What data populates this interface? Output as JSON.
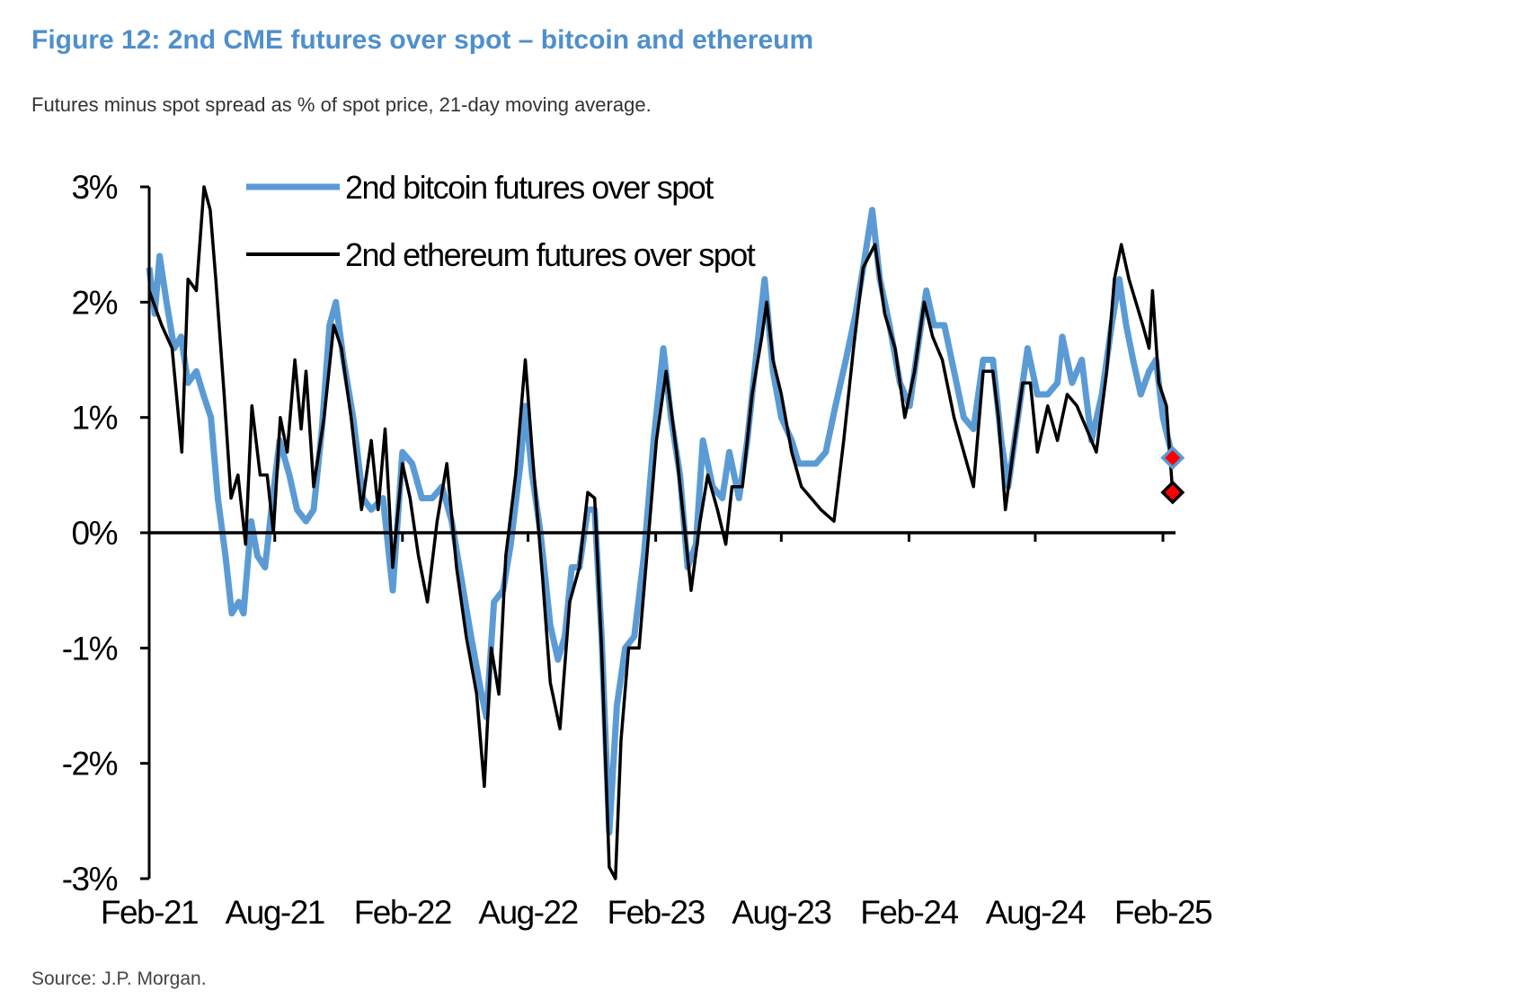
{
  "header": {
    "title": "Figure 12: 2nd CME futures over spot – bitcoin and ethereum",
    "subtitle": "Futures minus spot spread as % of spot price, 21-day moving average."
  },
  "footer": {
    "source": "Source: J.P. Morgan."
  },
  "chart_data": {
    "type": "line",
    "title": "",
    "xlabel": "",
    "ylabel": "",
    "ylim": [
      -3,
      3
    ],
    "yticks": [
      3,
      2,
      1,
      0,
      -1,
      -2,
      -3
    ],
    "ytick_labels": [
      "3%",
      "2%",
      "1%",
      "0%",
      "-1%",
      "-2%",
      "-3%"
    ],
    "xlim": [
      "2021-02-01",
      "2025-02-15"
    ],
    "xticks": [
      "2021-02-01",
      "2021-08-01",
      "2022-02-01",
      "2022-08-01",
      "2023-02-01",
      "2023-08-01",
      "2024-02-01",
      "2024-08-01",
      "2025-02-01"
    ],
    "xtick_labels": [
      "Feb-21",
      "Aug-21",
      "Feb-22",
      "Aug-22",
      "Feb-23",
      "Aug-23",
      "Feb-24",
      "Aug-24",
      "Feb-25"
    ],
    "grid": false,
    "legend_position": "top-left",
    "series": [
      {
        "name": "2nd bitcoin futures over spot",
        "color": "#5b9bd5",
        "last_marker": {
          "shape": "diamond",
          "fill": "#ff0000",
          "value": 0.65
        },
        "points": [
          [
            "2021-02-01",
            2.3
          ],
          [
            "2021-02-09",
            1.9
          ],
          [
            "2021-02-16",
            2.4
          ],
          [
            "2021-02-26",
            2.0
          ],
          [
            "2021-03-09",
            1.6
          ],
          [
            "2021-03-19",
            1.7
          ],
          [
            "2021-03-29",
            1.3
          ],
          [
            "2021-04-10",
            1.4
          ],
          [
            "2021-04-20",
            1.2
          ],
          [
            "2021-05-01",
            1.0
          ],
          [
            "2021-05-11",
            0.3
          ],
          [
            "2021-05-22",
            -0.2
          ],
          [
            "2021-05-31",
            -0.7
          ],
          [
            "2021-06-10",
            -0.6
          ],
          [
            "2021-06-17",
            -0.7
          ],
          [
            "2021-06-28",
            0.1
          ],
          [
            "2021-07-07",
            -0.2
          ],
          [
            "2021-07-18",
            -0.3
          ],
          [
            "2021-07-29",
            0.3
          ],
          [
            "2021-08-08",
            0.8
          ],
          [
            "2021-08-22",
            0.5
          ],
          [
            "2021-09-02",
            0.2
          ],
          [
            "2021-09-15",
            0.1
          ],
          [
            "2021-09-26",
            0.2
          ],
          [
            "2021-10-08",
            0.9
          ],
          [
            "2021-10-19",
            1.8
          ],
          [
            "2021-10-28",
            2.0
          ],
          [
            "2021-11-08",
            1.5
          ],
          [
            "2021-11-22",
            1.0
          ],
          [
            "2021-12-06",
            0.3
          ],
          [
            "2021-12-18",
            0.2
          ],
          [
            "2022-01-04",
            0.3
          ],
          [
            "2022-01-18",
            -0.5
          ],
          [
            "2022-02-01",
            0.7
          ],
          [
            "2022-02-15",
            0.6
          ],
          [
            "2022-03-01",
            0.3
          ],
          [
            "2022-03-16",
            0.3
          ],
          [
            "2022-03-30",
            0.4
          ],
          [
            "2022-04-13",
            0.1
          ],
          [
            "2022-04-27",
            -0.4
          ],
          [
            "2022-05-11",
            -0.9
          ],
          [
            "2022-05-26",
            -1.4
          ],
          [
            "2022-06-02",
            -1.6
          ],
          [
            "2022-06-13",
            -0.6
          ],
          [
            "2022-06-26",
            -0.5
          ],
          [
            "2022-07-07",
            -0.1
          ],
          [
            "2022-07-21",
            0.6
          ],
          [
            "2022-07-28",
            1.1
          ],
          [
            "2022-08-07",
            0.5
          ],
          [
            "2022-08-19",
            0.0
          ],
          [
            "2022-09-02",
            -0.8
          ],
          [
            "2022-09-13",
            -1.1
          ],
          [
            "2022-09-23",
            -0.9
          ],
          [
            "2022-10-03",
            -0.3
          ],
          [
            "2022-10-14",
            -0.3
          ],
          [
            "2022-10-26",
            0.2
          ],
          [
            "2022-11-05",
            0.2
          ],
          [
            "2022-11-15",
            -0.9
          ],
          [
            "2022-11-26",
            -2.6
          ],
          [
            "2022-12-07",
            -1.5
          ],
          [
            "2022-12-19",
            -1.0
          ],
          [
            "2023-01-01",
            -0.9
          ],
          [
            "2023-01-15",
            -0.2
          ],
          [
            "2023-01-29",
            0.8
          ],
          [
            "2023-02-12",
            1.6
          ],
          [
            "2023-02-23",
            1.0
          ],
          [
            "2023-03-08",
            0.5
          ],
          [
            "2023-03-19",
            -0.3
          ],
          [
            "2023-03-31",
            -0.1
          ],
          [
            "2023-04-10",
            0.8
          ],
          [
            "2023-04-24",
            0.4
          ],
          [
            "2023-05-08",
            0.3
          ],
          [
            "2023-05-18",
            0.7
          ],
          [
            "2023-06-01",
            0.3
          ],
          [
            "2023-06-13",
            0.8
          ],
          [
            "2023-06-27",
            1.6
          ],
          [
            "2023-07-08",
            2.2
          ],
          [
            "2023-07-20",
            1.4
          ],
          [
            "2023-08-01",
            1.0
          ],
          [
            "2023-08-16",
            0.8
          ],
          [
            "2023-08-26",
            0.6
          ],
          [
            "2023-09-06",
            0.6
          ],
          [
            "2023-09-20",
            0.6
          ],
          [
            "2023-10-04",
            0.7
          ],
          [
            "2023-10-18",
            1.1
          ],
          [
            "2023-11-02",
            1.5
          ],
          [
            "2023-11-16",
            1.9
          ],
          [
            "2023-11-27",
            2.3
          ],
          [
            "2023-12-10",
            2.8
          ],
          [
            "2023-12-21",
            2.2
          ],
          [
            "2024-01-04",
            1.8
          ],
          [
            "2024-01-19",
            1.3
          ],
          [
            "2024-02-02",
            1.1
          ],
          [
            "2024-02-16",
            1.7
          ],
          [
            "2024-02-26",
            2.1
          ],
          [
            "2024-03-08",
            1.8
          ],
          [
            "2024-03-23",
            1.8
          ],
          [
            "2024-04-06",
            1.4
          ],
          [
            "2024-04-20",
            1.0
          ],
          [
            "2024-05-04",
            0.9
          ],
          [
            "2024-05-18",
            1.5
          ],
          [
            "2024-06-01",
            1.5
          ],
          [
            "2024-06-13",
            0.8
          ],
          [
            "2024-06-23",
            0.4
          ],
          [
            "2024-07-07",
            1.0
          ],
          [
            "2024-07-21",
            1.6
          ],
          [
            "2024-08-04",
            1.2
          ],
          [
            "2024-08-19",
            1.2
          ],
          [
            "2024-09-02",
            1.3
          ],
          [
            "2024-09-09",
            1.7
          ],
          [
            "2024-09-23",
            1.3
          ],
          [
            "2024-10-07",
            1.5
          ],
          [
            "2024-10-21",
            0.8
          ],
          [
            "2024-11-05",
            1.2
          ],
          [
            "2024-11-19",
            1.8
          ],
          [
            "2024-11-30",
            2.2
          ],
          [
            "2024-12-10",
            1.8
          ],
          [
            "2024-12-20",
            1.5
          ],
          [
            "2024-12-31",
            1.2
          ],
          [
            "2025-01-12",
            1.4
          ],
          [
            "2025-01-22",
            1.5
          ],
          [
            "2025-02-01",
            1.0
          ],
          [
            "2025-02-15",
            0.65
          ]
        ]
      },
      {
        "name": "2nd ethereum futures over spot",
        "color": "#000000",
        "last_marker": {
          "shape": "diamond",
          "fill": "#ff0000",
          "value": 0.35
        },
        "points": [
          [
            "2021-02-01",
            2.1
          ],
          [
            "2021-02-19",
            1.8
          ],
          [
            "2021-03-06",
            1.6
          ],
          [
            "2021-03-20",
            0.7
          ],
          [
            "2021-03-29",
            2.2
          ],
          [
            "2021-04-10",
            2.1
          ],
          [
            "2021-04-21",
            3.0
          ],
          [
            "2021-04-30",
            2.8
          ],
          [
            "2021-05-08",
            2.2
          ],
          [
            "2021-05-20",
            1.2
          ],
          [
            "2021-05-30",
            0.3
          ],
          [
            "2021-06-09",
            0.5
          ],
          [
            "2021-06-20",
            -0.1
          ],
          [
            "2021-06-29",
            1.1
          ],
          [
            "2021-07-11",
            0.5
          ],
          [
            "2021-07-21",
            0.5
          ],
          [
            "2021-07-30",
            0.0
          ],
          [
            "2021-08-09",
            1.0
          ],
          [
            "2021-08-19",
            0.7
          ],
          [
            "2021-08-30",
            1.5
          ],
          [
            "2021-09-08",
            0.9
          ],
          [
            "2021-09-15",
            1.4
          ],
          [
            "2021-09-26",
            0.4
          ],
          [
            "2021-10-11",
            1.0
          ],
          [
            "2021-10-25",
            1.8
          ],
          [
            "2021-11-05",
            1.6
          ],
          [
            "2021-11-19",
            1.0
          ],
          [
            "2021-12-04",
            0.2
          ],
          [
            "2021-12-18",
            0.8
          ],
          [
            "2021-12-28",
            0.2
          ],
          [
            "2022-01-07",
            0.9
          ],
          [
            "2022-01-18",
            -0.3
          ],
          [
            "2022-02-01",
            0.6
          ],
          [
            "2022-02-12",
            0.3
          ],
          [
            "2022-02-24",
            -0.2
          ],
          [
            "2022-03-09",
            -0.6
          ],
          [
            "2022-03-23",
            0.1
          ],
          [
            "2022-04-06",
            0.6
          ],
          [
            "2022-04-20",
            -0.3
          ],
          [
            "2022-05-04",
            -0.9
          ],
          [
            "2022-05-19",
            -1.4
          ],
          [
            "2022-05-30",
            -2.2
          ],
          [
            "2022-06-09",
            -1.0
          ],
          [
            "2022-06-20",
            -1.4
          ],
          [
            "2022-06-30",
            -0.2
          ],
          [
            "2022-07-14",
            0.5
          ],
          [
            "2022-07-28",
            1.5
          ],
          [
            "2022-08-07",
            0.7
          ],
          [
            "2022-08-22",
            -0.4
          ],
          [
            "2022-09-02",
            -1.3
          ],
          [
            "2022-09-16",
            -1.7
          ],
          [
            "2022-09-30",
            -0.6
          ],
          [
            "2022-10-14",
            -0.3
          ],
          [
            "2022-10-26",
            0.35
          ],
          [
            "2022-11-05",
            0.3
          ],
          [
            "2022-11-15",
            -1.0
          ],
          [
            "2022-11-26",
            -2.9
          ],
          [
            "2022-12-05",
            -3.0
          ],
          [
            "2022-12-13",
            -1.8
          ],
          [
            "2022-12-24",
            -1.0
          ],
          [
            "2023-01-08",
            -1.0
          ],
          [
            "2023-01-22",
            0.0
          ],
          [
            "2023-02-02",
            0.8
          ],
          [
            "2023-02-16",
            1.4
          ],
          [
            "2023-03-03",
            0.7
          ],
          [
            "2023-03-17",
            -0.1
          ],
          [
            "2023-03-24",
            -0.5
          ],
          [
            "2023-04-06",
            0.1
          ],
          [
            "2023-04-17",
            0.5
          ],
          [
            "2023-05-01",
            0.2
          ],
          [
            "2023-05-13",
            -0.1
          ],
          [
            "2023-05-22",
            0.4
          ],
          [
            "2023-06-06",
            0.4
          ],
          [
            "2023-06-20",
            1.2
          ],
          [
            "2023-07-04",
            1.7
          ],
          [
            "2023-07-11",
            2.0
          ],
          [
            "2023-07-20",
            1.5
          ],
          [
            "2023-08-01",
            1.2
          ],
          [
            "2023-08-16",
            0.7
          ],
          [
            "2023-08-30",
            0.4
          ],
          [
            "2023-09-13",
            0.3
          ],
          [
            "2023-09-27",
            0.2
          ],
          [
            "2023-10-16",
            0.1
          ],
          [
            "2023-10-30",
            0.8
          ],
          [
            "2023-11-13",
            1.6
          ],
          [
            "2023-11-27",
            2.3
          ],
          [
            "2023-12-14",
            2.5
          ],
          [
            "2023-12-28",
            1.9
          ],
          [
            "2024-01-12",
            1.6
          ],
          [
            "2024-01-26",
            1.0
          ],
          [
            "2024-02-09",
            1.4
          ],
          [
            "2024-02-23",
            2.0
          ],
          [
            "2024-03-06",
            1.7
          ],
          [
            "2024-03-20",
            1.5
          ],
          [
            "2024-04-06",
            1.0
          ],
          [
            "2024-04-20",
            0.7
          ],
          [
            "2024-05-04",
            0.4
          ],
          [
            "2024-05-18",
            1.4
          ],
          [
            "2024-06-01",
            1.4
          ],
          [
            "2024-06-09",
            1.0
          ],
          [
            "2024-06-19",
            0.2
          ],
          [
            "2024-06-30",
            0.7
          ],
          [
            "2024-07-14",
            1.3
          ],
          [
            "2024-07-25",
            1.3
          ],
          [
            "2024-08-04",
            0.7
          ],
          [
            "2024-08-19",
            1.1
          ],
          [
            "2024-09-02",
            0.8
          ],
          [
            "2024-09-16",
            1.2
          ],
          [
            "2024-09-30",
            1.1
          ],
          [
            "2024-10-14",
            0.9
          ],
          [
            "2024-10-28",
            0.7
          ],
          [
            "2024-11-12",
            1.4
          ],
          [
            "2024-11-23",
            2.2
          ],
          [
            "2024-12-03",
            2.5
          ],
          [
            "2024-12-14",
            2.2
          ],
          [
            "2024-12-24",
            2.0
          ],
          [
            "2025-01-03",
            1.8
          ],
          [
            "2025-01-12",
            1.6
          ],
          [
            "2025-01-17",
            2.1
          ],
          [
            "2025-01-26",
            1.3
          ],
          [
            "2025-02-06",
            1.1
          ],
          [
            "2025-02-15",
            0.35
          ]
        ]
      }
    ]
  }
}
